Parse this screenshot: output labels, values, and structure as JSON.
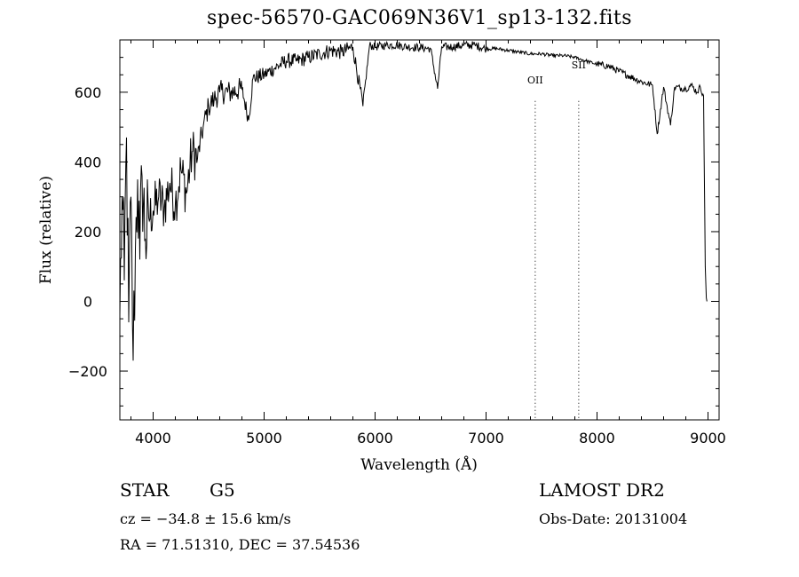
{
  "chart_data": {
    "type": "line",
    "title": "spec-56570-GAC069N36V1_sp13-132.fits",
    "xlabel": "Wavelength (Å)",
    "ylabel": "Flux (relative)",
    "xlim": [
      3700,
      9100
    ],
    "ylim": [
      -340,
      750
    ],
    "xticks": [
      4000,
      5000,
      6000,
      7000,
      8000,
      9000
    ],
    "xtick_labels": [
      "4000",
      "5000",
      "6000",
      "7000",
      "8000",
      "9000"
    ],
    "yticks": [
      -200,
      0,
      200,
      400,
      600
    ],
    "ytick_labels": [
      "−200",
      "0",
      "200",
      "400",
      "600"
    ],
    "grid": false,
    "series": [
      {
        "x": [
          3700,
          3720,
          3740,
          3760,
          3780,
          3800,
          3820,
          3840,
          3860,
          3880,
          3900,
          3930,
          3960,
          4000,
          4050,
          4100,
          4150,
          4200,
          4250,
          4300,
          4350,
          4400,
          4450,
          4500,
          4550,
          4600,
          4700,
          4800,
          4861,
          4900,
          5000,
          5100,
          5200,
          5300,
          5400,
          5500,
          5600,
          5700,
          5800,
          5890,
          5950,
          6000,
          6100,
          6200,
          6300,
          6400,
          6500,
          6563,
          6600,
          6700,
          6800,
          6900,
          7000,
          7100,
          7200,
          7300,
          7400,
          7500,
          7600,
          7700,
          7800,
          7900,
          8000,
          8100,
          8200,
          8300,
          8400,
          8500,
          8542,
          8600,
          8662,
          8700,
          8800,
          8850,
          8900,
          8930,
          8960,
          8975,
          8985,
          8990
        ],
        "y": [
          -40,
          300,
          60,
          470,
          -60,
          300,
          -170,
          150,
          350,
          120,
          360,
          180,
          240,
          260,
          300,
          270,
          340,
          280,
          380,
          310,
          430,
          410,
          500,
          560,
          580,
          600,
          600,
          610,
          520,
          640,
          650,
          670,
          690,
          690,
          700,
          710,
          720,
          715,
          730,
          560,
          735,
          730,
          735,
          735,
          730,
          728,
          725,
          610,
          730,
          730,
          735,
          735,
          725,
          725,
          720,
          715,
          710,
          710,
          705,
          705,
          700,
          690,
          680,
          675,
          660,
          645,
          630,
          620,
          480,
          615,
          505,
          615,
          610,
          620,
          600,
          615,
          590,
          100,
          10,
          0
        ]
      }
    ],
    "lines": [
      {
        "label": "OII",
        "x": 7443
      },
      {
        "label": "SII",
        "x": 7835
      }
    ]
  },
  "info": {
    "object_class": "STAR",
    "subclass": "G5",
    "survey": "LAMOST DR2",
    "cz": "cz = −34.8 ± 15.6 km/s",
    "obs_date": "Obs-Date: 20131004",
    "radec": "RA =  71.51310, DEC =  37.54536"
  }
}
